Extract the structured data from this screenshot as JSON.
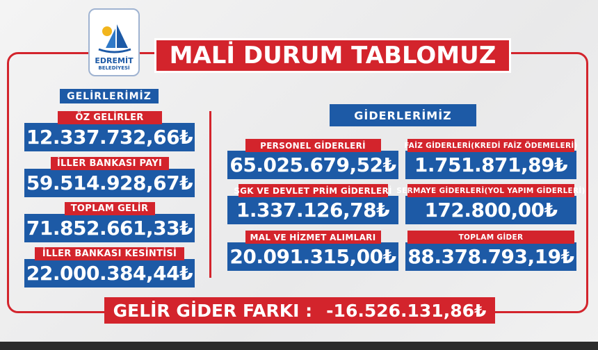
{
  "logo": {
    "name": "EDREMİT",
    "sub": "BELEDİYESİ"
  },
  "title": "MALİ DURUM TABLOMUZ",
  "income": {
    "heading": "GELİRLERİMİZ",
    "items": [
      {
        "label": "ÖZ GELİRLER",
        "amount": "12.337.732,66₺"
      },
      {
        "label": "İLLER BANKASI PAYI",
        "amount": "59.514.928,67₺"
      },
      {
        "label": "TOPLAM GELİR",
        "amount": "71.852.661,33₺"
      },
      {
        "label": "İLLER BANKASI KESİNTİSİ",
        "amount": "22.000.384,44₺"
      }
    ]
  },
  "expenses": {
    "heading": "GİDERLERİMİZ",
    "items": [
      {
        "label": "PERSONEL GİDERLERİ",
        "amount": "65.025.679,52₺"
      },
      {
        "label": "FAİZ GİDERLERİ(KREDİ FAİZ ÖDEMELERİ)",
        "amount": "1.751.871,89₺"
      },
      {
        "label": "SGK VE DEVLET PRİM GİDERLERİ",
        "amount": "1.337.126,78₺"
      },
      {
        "label": "SERMAYE GİDERLERİ(YOL YAPIM GİDERLERİ)",
        "amount": "172.800,00₺"
      },
      {
        "label": "MAL VE HİZMET ALIMLARI",
        "amount": "20.091.315,00₺"
      },
      {
        "label": "TOPLAM GİDER",
        "amount": "88.378.793,19₺"
      }
    ]
  },
  "balance": {
    "label": "GELİR GİDER FARKI :",
    "amount": "-16.526.131,86₺"
  }
}
